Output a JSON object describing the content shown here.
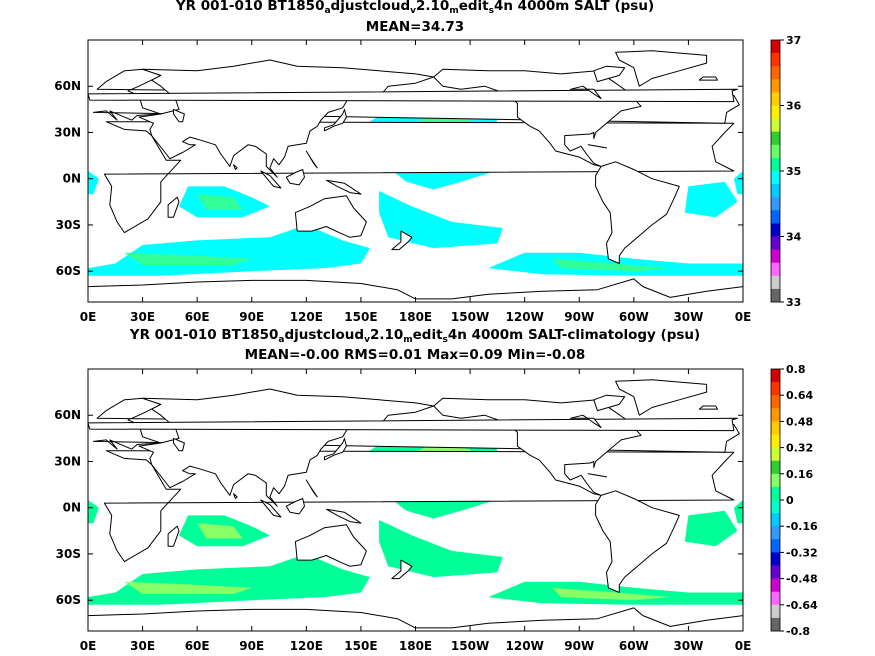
{
  "panels": [
    {
      "title_parts": {
        "a": "YR 001-010 BT1850",
        "s1": "a",
        "b": "djustcloud",
        "s2": "v",
        "c": "2.10",
        "s3": "m",
        "d": "edit",
        "s4": "s",
        "e": "4n 4000m SALT (psu)"
      },
      "subtitle": "MEAN=34.73",
      "colorbar_labels": [
        "37",
        "36",
        "35",
        "34",
        "33"
      ],
      "colorbar_colors": [
        "#d50000",
        "#ff3300",
        "#ff6600",
        "#ff9900",
        "#ffcc00",
        "#ffee00",
        "#ccff33",
        "#33cc33",
        "#66ff66",
        "#00ff99",
        "#00ffff",
        "#00ccff",
        "#3399ff",
        "#0066ff",
        "#0000cc",
        "#6600cc",
        "#cc00cc",
        "#ff66ff",
        "#cccccc",
        "#666666"
      ],
      "fill_colors": [
        "#00ffff",
        "#33ff99"
      ]
    },
    {
      "title_parts": {
        "a": "YR 001-010 BT1850",
        "s1": "a",
        "b": "djustcloud",
        "s2": "v",
        "c": "2.10",
        "s3": "m",
        "d": "edit",
        "s4": "s",
        "e": "4n 4000m SALT-climatology (psu)"
      },
      "subtitle": "MEAN=-0.00   RMS=0.01   Max=0.09   Min=-0.08",
      "colorbar_labels": [
        "0.8",
        "0.64",
        "0.48",
        "0.32",
        "0.16",
        "0",
        "-0.16",
        "-0.32",
        "-0.48",
        "-0.64",
        "-0.8"
      ],
      "colorbar_colors": [
        "#d50000",
        "#ff3300",
        "#ff6600",
        "#ff9900",
        "#ffcc00",
        "#ffee00",
        "#ccff33",
        "#33cc33",
        "#88ff66",
        "#00ff99",
        "#00ffcc",
        "#00ccff",
        "#3399ff",
        "#0066ff",
        "#0000cc",
        "#6600cc",
        "#cc00cc",
        "#ff66ff",
        "#cccccc",
        "#666666"
      ],
      "fill_colors": [
        "#00ff99",
        "#88ff66"
      ]
    }
  ],
  "lat_labels": [
    "60N",
    "30N",
    "0N",
    "30S",
    "60S"
  ],
  "lon_labels": [
    "0E",
    "30E",
    "60E",
    "90E",
    "120E",
    "150E",
    "180E",
    "150W",
    "120W",
    "90W",
    "60W",
    "30W",
    "0E"
  ]
}
